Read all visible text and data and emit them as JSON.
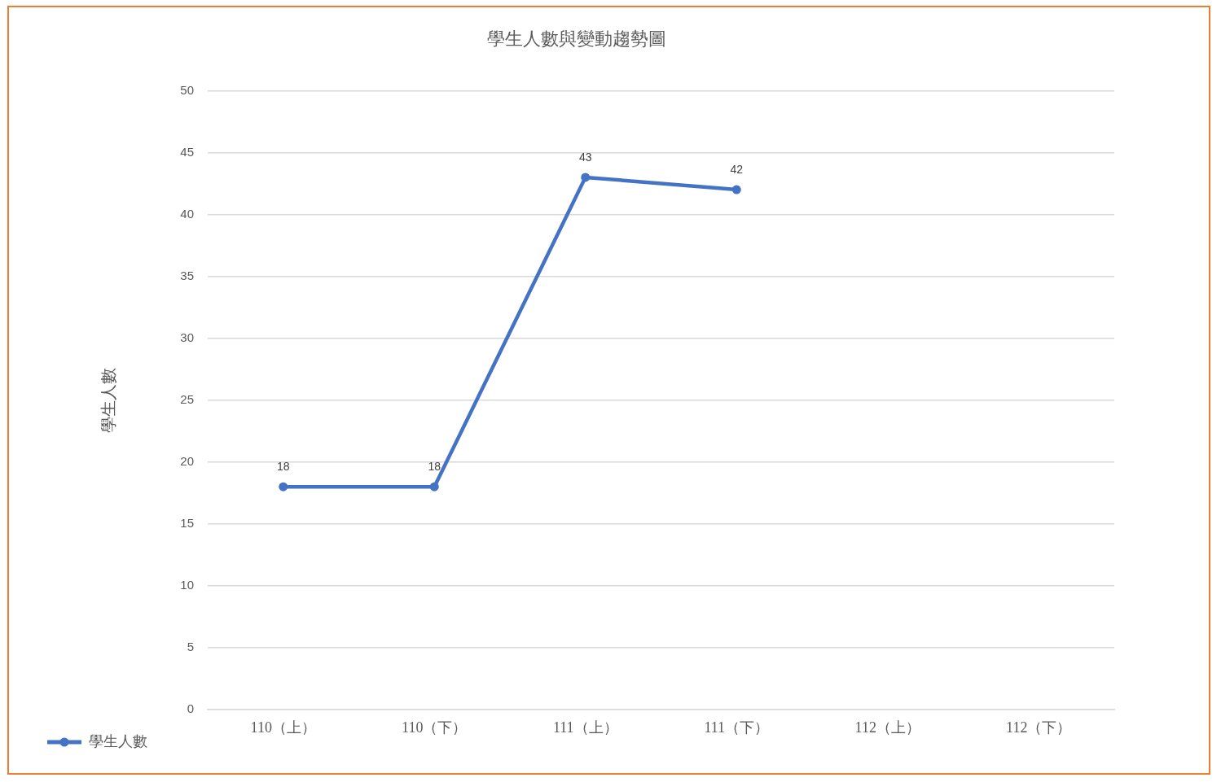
{
  "chart_data": {
    "type": "line",
    "title": "學生人數與變動趨勢圖",
    "ylabel": "學生人數",
    "categories": [
      "110（上）",
      "110（下）",
      "111（上）",
      "111（下）",
      "112（上）",
      "112（下）"
    ],
    "series": [
      {
        "name": "學生人數",
        "color": "#4472c4",
        "values": [
          18,
          18,
          43,
          42,
          null,
          null
        ]
      }
    ],
    "ylim": [
      0,
      50
    ],
    "yticks": [
      0,
      5,
      10,
      15,
      20,
      25,
      30,
      35,
      40,
      45,
      50
    ],
    "grid": "y",
    "legend": "bottom left",
    "marker": "circle",
    "line_style": "solid",
    "data_labels": true
  }
}
